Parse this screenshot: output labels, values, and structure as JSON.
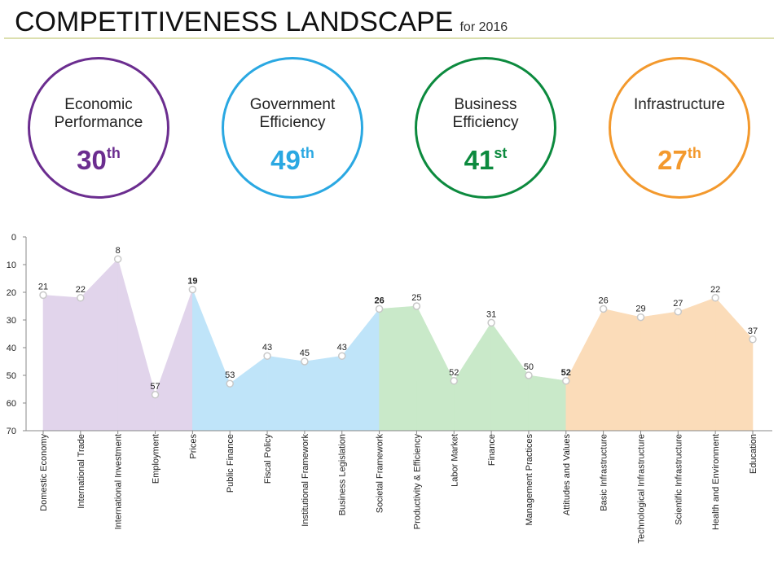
{
  "title": "COMPETITIVENESS LANDSCAPE",
  "subtitle": "for 2016",
  "pillars": [
    {
      "name": "Economic Performance",
      "rank": 30,
      "suffix": "th",
      "color": "#6b2d8f"
    },
    {
      "name": "Government Efficiency",
      "rank": 49,
      "suffix": "th",
      "color": "#2aa8e2"
    },
    {
      "name": "Business Efficiency",
      "rank": 41,
      "suffix": "st",
      "color": "#0c8a3e"
    },
    {
      "name": "Infrastructure",
      "rank": 27,
      "suffix": "th",
      "color": "#f3992d"
    }
  ],
  "chart_data": {
    "type": "area",
    "categories": [
      "Domestic Economy",
      "International Trade",
      "International Investment",
      "Employment",
      "Prices",
      "Public Finance",
      "Fiscal Policy",
      "Institutional Framework",
      "Business Legislation",
      "Societal Framework",
      "Productivity & Efficiency",
      "Labor Market",
      "Finance",
      "Management Practices",
      "Attitudes and Values",
      "Basic Infrastructure",
      "Technological Infrastructure",
      "Scientific Infrastructure",
      "Health and Environment",
      "Education"
    ],
    "values": [
      21,
      22,
      8,
      57,
      19,
      53,
      43,
      45,
      43,
      26,
      25,
      52,
      31,
      50,
      52,
      26,
      29,
      27,
      22,
      37
    ],
    "colors": [
      "#e1d4eb",
      "#e1d4eb",
      "#e1d4eb",
      "#e1d4eb",
      "#e1d4eb",
      "#bfe4f9",
      "#bfe4f9",
      "#bfe4f9",
      "#bfe4f9",
      "#bfe4f9",
      "#c9e9c9",
      "#c9e9c9",
      "#c9e9c9",
      "#c9e9c9",
      "#c9e9c9",
      "#fbdcb9",
      "#fbdcb9",
      "#fbdcb9",
      "#fbdcb9",
      "#fbdcb9"
    ],
    "ylim": [
      0,
      70
    ],
    "yticks": [
      0,
      10,
      20,
      30,
      40,
      50,
      60,
      70
    ],
    "inverted": true
  }
}
